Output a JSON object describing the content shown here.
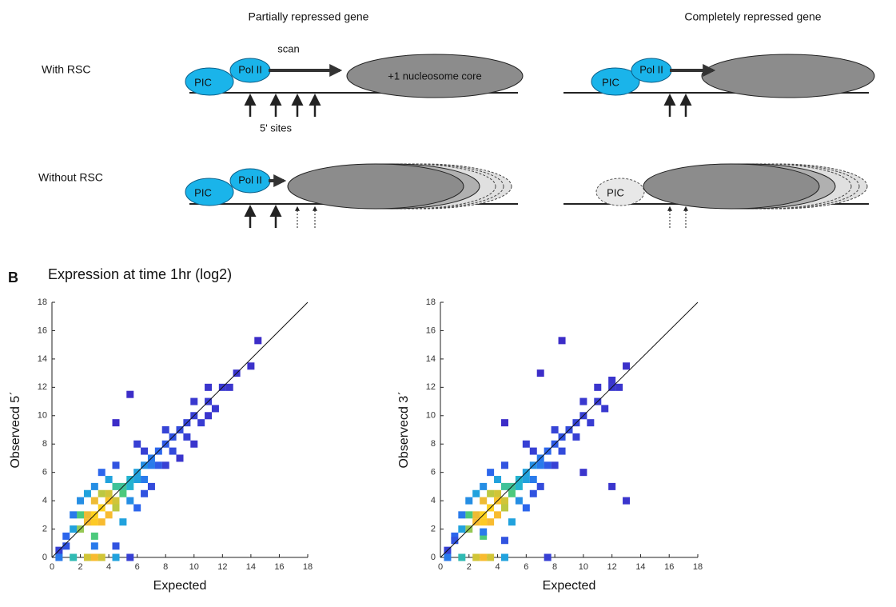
{
  "diagram": {
    "columns": [
      "Partially repressed gene",
      "Completely repressed gene"
    ],
    "rows": [
      "With RSC",
      "Without RSC"
    ],
    "scan": "scan",
    "nucleosome": "+1 nucleosome core",
    "sites": "5' sites",
    "pic": "PIC",
    "pol": "Pol II"
  },
  "panel_label": "B",
  "panel_title": "Expression at time 1hr (log2)",
  "colormap": [
    "#3c2dc8",
    "#2a6cf0",
    "#1fb0d8",
    "#4cc97c",
    "#c8c83a",
    "#f7b832",
    "#ffd21f"
  ],
  "chart_data": [
    {
      "type": "scatter",
      "xlabel": "Expected",
      "ylabel": "Observecd 5ˊ",
      "xlim": [
        0,
        18
      ],
      "ylim": [
        0,
        18
      ],
      "xticks": [
        0,
        2,
        4,
        6,
        8,
        10,
        12,
        14,
        16,
        18
      ],
      "yticks": [
        0,
        2,
        4,
        6,
        8,
        10,
        12,
        14,
        16,
        18
      ],
      "x": [
        3,
        3.5,
        4,
        3,
        2.5,
        3.5,
        4,
        3,
        2.5,
        4.5,
        4,
        2,
        3.5,
        4.5,
        2,
        3,
        5,
        5,
        4.5,
        5.5,
        5.5,
        6,
        6,
        6.5,
        7,
        7,
        7.5,
        8,
        8.5,
        9,
        9.5,
        10,
        11,
        12,
        13,
        14,
        14.5,
        1.5,
        1,
        1.5,
        2,
        2.5,
        3,
        3.5,
        4.5,
        6,
        5,
        6,
        6.5,
        7,
        8,
        4.5,
        5.5,
        6.5,
        9,
        10,
        11,
        0.5,
        0.5,
        1.5,
        2.5,
        3,
        3.5,
        4.5,
        5.5,
        1,
        3,
        4.5,
        5.5,
        4,
        6.5,
        7.5,
        8.5,
        9.5,
        10.5,
        11.5,
        12.5,
        8,
        10,
        11
      ],
      "y": [
        3,
        3.5,
        4,
        2.5,
        2.5,
        2.5,
        3,
        4,
        3,
        4,
        4.5,
        2,
        4.5,
        3.5,
        3,
        1.5,
        4.5,
        5,
        5,
        5,
        5.5,
        6,
        5.5,
        6.5,
        7,
        6.5,
        7.5,
        8,
        8.5,
        9,
        9.5,
        10,
        11,
        12,
        13,
        13.5,
        15.3,
        2,
        1.5,
        3,
        4,
        4.5,
        5,
        6,
        6.5,
        8,
        2.5,
        3.5,
        4.5,
        5,
        6.5,
        9.5,
        11.5,
        7.5,
        7,
        8,
        10,
        0.5,
        0,
        0,
        0,
        0,
        0,
        0,
        0,
        0.8,
        0.8,
        0.8,
        4,
        5.5,
        5.5,
        6.5,
        7.5,
        8.5,
        9.5,
        10.5,
        12,
        9,
        11,
        12
      ],
      "density": [
        1,
        1,
        0.9,
        0.95,
        0.85,
        0.85,
        0.85,
        0.8,
        0.8,
        0.7,
        0.7,
        0.6,
        0.65,
        0.65,
        0.5,
        0.5,
        0.5,
        0.45,
        0.45,
        0.35,
        0.35,
        0.3,
        0.3,
        0.25,
        0.2,
        0.2,
        0.15,
        0.12,
        0.1,
        0.08,
        0.06,
        0.05,
        0.04,
        0.03,
        0.02,
        0.01,
        0,
        0.3,
        0.15,
        0.2,
        0.25,
        0.3,
        0.25,
        0.15,
        0.1,
        0.05,
        0.3,
        0.15,
        0.1,
        0.08,
        0.05,
        0,
        0,
        0.05,
        0.02,
        0.02,
        0.02,
        0.05,
        0.2,
        0.4,
        0.7,
        0.85,
        0.7,
        0.3,
        0.05,
        0.1,
        0.2,
        0.1,
        0.25,
        0.3,
        0.2,
        0.12,
        0.08,
        0.05,
        0.04,
        0.03,
        0.02,
        0.06,
        0.03,
        0.02
      ]
    },
    {
      "type": "scatter",
      "xlabel": "Expected",
      "ylabel": "Observecd 3ˊ",
      "xlim": [
        0,
        18
      ],
      "ylim": [
        0,
        18
      ],
      "xticks": [
        0,
        2,
        4,
        6,
        8,
        10,
        12,
        14,
        16,
        18
      ],
      "yticks": [
        0,
        2,
        4,
        6,
        8,
        10,
        12,
        14,
        16,
        18
      ],
      "x": [
        3,
        3.5,
        4,
        3,
        2.5,
        3.5,
        4,
        3,
        2.5,
        4.5,
        4,
        2,
        3.5,
        4.5,
        2,
        3,
        5,
        5,
        4.5,
        5.5,
        5.5,
        6,
        6,
        6.5,
        7,
        7,
        7.5,
        8,
        8.5,
        9,
        9.5,
        10,
        11,
        12,
        12,
        13,
        8.5,
        1.5,
        1,
        1.5,
        2,
        2.5,
        3,
        3.5,
        4.5,
        6,
        5,
        6,
        6.5,
        7,
        8,
        4.5,
        7,
        6.5,
        10,
        12,
        13,
        0.5,
        0.5,
        1.5,
        2.5,
        3,
        3.5,
        4.5,
        7.5,
        1,
        3,
        4.5,
        5.5,
        4,
        6.5,
        7.5,
        8.5,
        9.5,
        10.5,
        11.5,
        12.5,
        8,
        10,
        11
      ],
      "y": [
        3,
        3.5,
        4,
        2.5,
        2.5,
        2.5,
        3,
        4,
        3,
        4,
        4.5,
        2,
        4.5,
        3.5,
        3,
        1.5,
        4.5,
        5,
        5,
        5,
        5.5,
        6,
        5.5,
        6.5,
        7,
        6.5,
        7.5,
        8,
        8.5,
        9,
        9.5,
        10,
        11,
        12,
        12.5,
        13.5,
        15.3,
        2,
        1.5,
        3,
        4,
        4.5,
        5,
        6,
        6.5,
        8,
        2.5,
        3.5,
        4.5,
        5,
        6.5,
        9.5,
        13,
        7.5,
        6,
        5,
        4,
        0.5,
        0,
        0,
        0,
        0,
        0,
        0,
        0,
        1.2,
        1.8,
        1.2,
        4,
        5.5,
        5.5,
        6.5,
        7.5,
        8.5,
        9.5,
        10.5,
        12,
        9,
        11,
        12
      ],
      "density": [
        1,
        1,
        0.9,
        0.95,
        0.85,
        0.85,
        0.85,
        0.8,
        0.8,
        0.7,
        0.7,
        0.6,
        0.65,
        0.65,
        0.5,
        0.5,
        0.5,
        0.45,
        0.45,
        0.35,
        0.35,
        0.3,
        0.3,
        0.25,
        0.2,
        0.2,
        0.15,
        0.12,
        0.1,
        0.08,
        0.06,
        0.05,
        0.04,
        0.03,
        0.02,
        0.01,
        0,
        0.3,
        0.15,
        0.2,
        0.25,
        0.3,
        0.25,
        0.15,
        0.1,
        0.05,
        0.3,
        0.15,
        0.1,
        0.08,
        0.05,
        0,
        0,
        0.05,
        0.02,
        0.02,
        0.02,
        0.05,
        0.2,
        0.4,
        0.7,
        0.85,
        0.7,
        0.3,
        0.05,
        0.1,
        0.2,
        0.1,
        0.25,
        0.3,
        0.2,
        0.12,
        0.08,
        0.05,
        0.04,
        0.03,
        0.02,
        0.06,
        0.03,
        0.02
      ]
    }
  ]
}
